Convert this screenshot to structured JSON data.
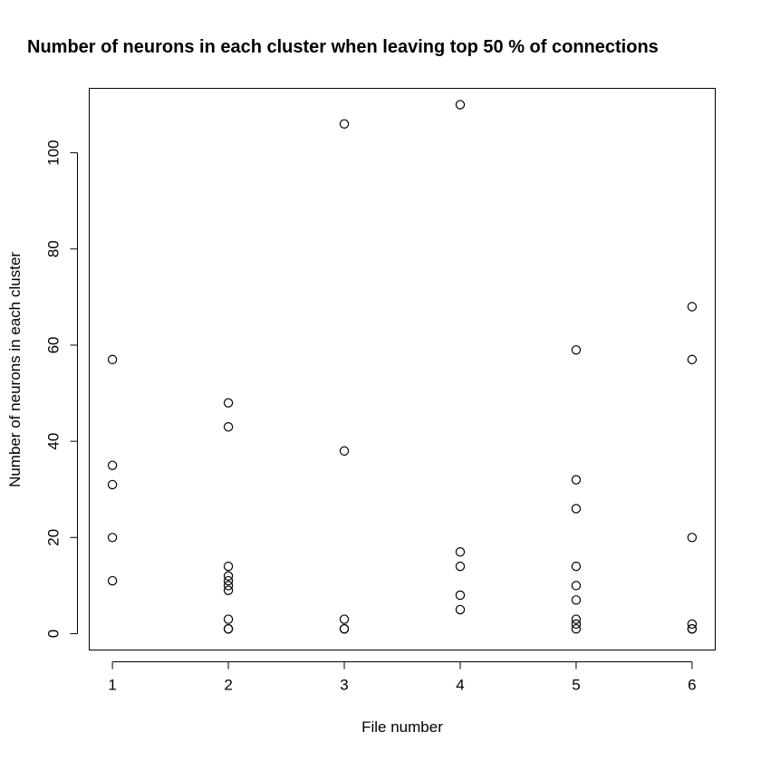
{
  "chart_data": {
    "type": "scatter",
    "title": "Number of neurons in each cluster when leaving top 50 % of connections",
    "xlabel": "File number",
    "ylabel": "Number of neurons in each cluster",
    "xlim": [
      0.8,
      6.2
    ],
    "ylim": [
      -3.4,
      113.4
    ],
    "xticks": [
      1,
      2,
      3,
      4,
      5,
      6
    ],
    "yticks": [
      0,
      20,
      40,
      60,
      80,
      100
    ],
    "grid": false,
    "legend": "none",
    "marker": "open-circle",
    "points": [
      {
        "x": 1,
        "y": 57
      },
      {
        "x": 1,
        "y": 35
      },
      {
        "x": 1,
        "y": 31
      },
      {
        "x": 1,
        "y": 20
      },
      {
        "x": 1,
        "y": 11
      },
      {
        "x": 2,
        "y": 48
      },
      {
        "x": 2,
        "y": 43
      },
      {
        "x": 2,
        "y": 14
      },
      {
        "x": 2,
        "y": 12
      },
      {
        "x": 2,
        "y": 11
      },
      {
        "x": 2,
        "y": 10
      },
      {
        "x": 2,
        "y": 9
      },
      {
        "x": 2,
        "y": 3
      },
      {
        "x": 2,
        "y": 1
      },
      {
        "x": 2,
        "y": 1
      },
      {
        "x": 3,
        "y": 106
      },
      {
        "x": 3,
        "y": 38
      },
      {
        "x": 3,
        "y": 3
      },
      {
        "x": 3,
        "y": 1
      },
      {
        "x": 3,
        "y": 1
      },
      {
        "x": 4,
        "y": 110
      },
      {
        "x": 4,
        "y": 17
      },
      {
        "x": 4,
        "y": 14
      },
      {
        "x": 4,
        "y": 8
      },
      {
        "x": 4,
        "y": 5
      },
      {
        "x": 5,
        "y": 59
      },
      {
        "x": 5,
        "y": 32
      },
      {
        "x": 5,
        "y": 26
      },
      {
        "x": 5,
        "y": 14
      },
      {
        "x": 5,
        "y": 10
      },
      {
        "x": 5,
        "y": 7
      },
      {
        "x": 5,
        "y": 3
      },
      {
        "x": 5,
        "y": 2
      },
      {
        "x": 5,
        "y": 1
      },
      {
        "x": 6,
        "y": 68
      },
      {
        "x": 6,
        "y": 57
      },
      {
        "x": 6,
        "y": 20
      },
      {
        "x": 6,
        "y": 2
      },
      {
        "x": 6,
        "y": 1
      },
      {
        "x": 6,
        "y": 1
      }
    ]
  }
}
